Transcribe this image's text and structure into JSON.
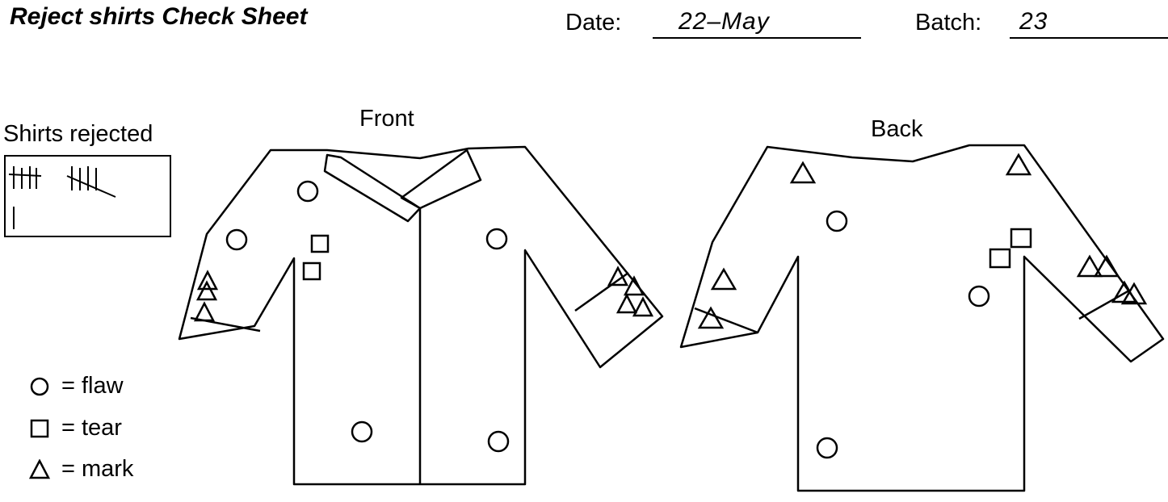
{
  "sheet": {
    "title": "Reject shirts Check Sheet",
    "date_label": "Date:",
    "date_value": "22–May",
    "batch_label": "Batch:",
    "batch_value": "23"
  },
  "tally": {
    "label": "Shirts rejected",
    "count": 11
  },
  "views": {
    "front_label": "Front",
    "back_label": "Back"
  },
  "legend": [
    {
      "symbol": "circle-icon",
      "text": "= flaw"
    },
    {
      "symbol": "square-icon",
      "text": "= tear"
    },
    {
      "symbol": "triangle-icon",
      "text": "= mark"
    }
  ],
  "defect_counts": {
    "front": {
      "flaw": 5,
      "tear": 2,
      "mark": 7
    },
    "back": {
      "flaw": 3,
      "tear": 2,
      "mark": 8
    }
  }
}
